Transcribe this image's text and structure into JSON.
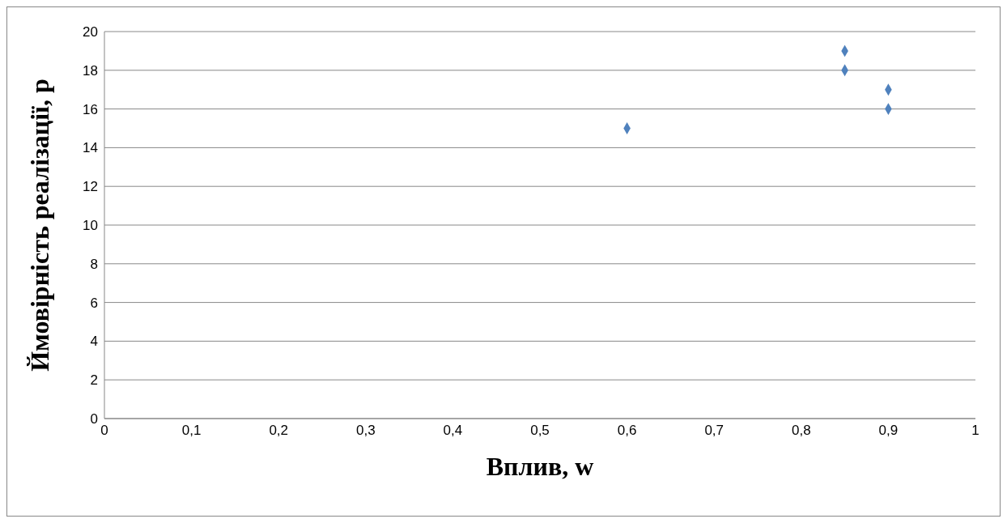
{
  "chart_data": {
    "type": "scatter",
    "xlabel": "Вплив, w",
    "ylabel": "Ймовірність реалізації, p",
    "x": [
      0.6,
      0.85,
      0.85,
      0.9,
      0.9
    ],
    "values": [
      15,
      19,
      18,
      17,
      16
    ],
    "color": "#4f81bd",
    "marker": "diamond",
    "grid": "y",
    "xlim": [
      0,
      1
    ],
    "xticks": [
      0,
      {
        "value": 0.1,
        "label": "0,1"
      },
      {
        "value": 0.2,
        "label": "0,2"
      },
      {
        "value": 0.3,
        "label": "0,3"
      },
      {
        "value": 0.4,
        "label": "0,4"
      },
      {
        "value": 0.5,
        "label": "0,5"
      },
      {
        "value": 0.6,
        "label": "0,6"
      },
      {
        "value": 0.7,
        "label": "0,7"
      },
      {
        "value": 0.8,
        "label": "0,8"
      },
      {
        "value": 0.9,
        "label": "0,9"
      },
      1
    ],
    "ylim": [
      0,
      20
    ],
    "yticks": [
      0,
      2,
      4,
      6,
      8,
      10,
      12,
      14,
      16,
      18,
      20
    ]
  }
}
